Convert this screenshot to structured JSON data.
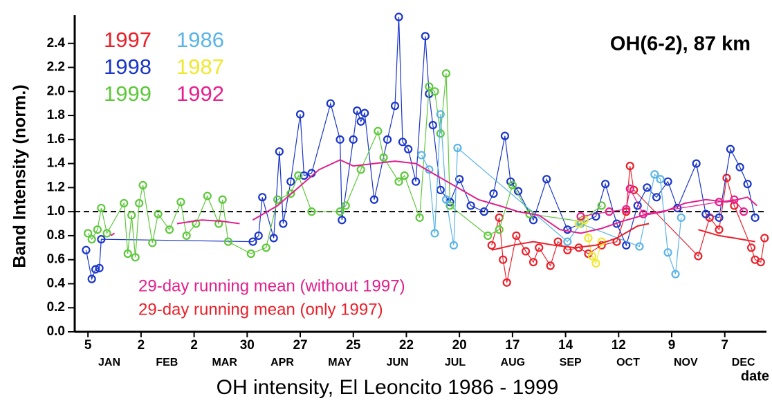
{
  "chart_data": {
    "type": "scatter",
    "title": "OH intensity, El Leoncito 1986 - 1999",
    "annotation": "OH(6-2), 87 km",
    "y_label": "Band Intensity (norm.)",
    "x_label": "date",
    "months": [
      "JAN",
      "FEB",
      "MAR",
      "APR",
      "MAY",
      "JUN",
      "JUL",
      "AUG",
      "SEP",
      "OCT",
      "NOV",
      "DEC"
    ],
    "xlim": [
      -2,
      363
    ],
    "xticks": [
      5,
      33,
      61,
      89,
      117,
      145,
      173,
      201,
      229,
      257,
      285,
      313,
      341
    ],
    "xtick_labels": [
      "5",
      "2",
      "2",
      "30",
      "27",
      "25",
      "22",
      "20",
      "17",
      "14",
      "12",
      "9",
      "7"
    ],
    "ylim": [
      0,
      2.6
    ],
    "yticks": [
      {
        "value": 0,
        "label": "0.0"
      },
      0.2,
      0.4,
      0.6,
      0.8,
      {
        "value": 1,
        "label": "1.0"
      },
      1.2,
      1.4,
      1.6,
      1.8,
      {
        "value": 2,
        "label": "2.0"
      },
      2.2,
      2.4
    ],
    "reference_line": 1,
    "series": [
      {
        "name": "1997",
        "color": "#e8202a",
        "x": [
          218,
          222,
          224,
          226,
          231,
          236,
          240,
          243,
          249,
          253,
          258,
          264,
          269,
          276,
          284,
          289,
          291,
          293,
          327,
          333,
          338,
          342,
          346,
          355,
          357,
          360,
          362
        ],
        "values": [
          0.72,
          0.95,
          0.6,
          0.41,
          0.8,
          0.67,
          0.58,
          0.7,
          0.55,
          0.75,
          0.68,
          0.7,
          0.65,
          0.72,
          0.75,
          1.0,
          1.38,
          1.18,
          0.63,
          0.95,
          0.85,
          1.28,
          1.05,
          0.7,
          0.6,
          0.58,
          0.78
        ]
      },
      {
        "name": "1998",
        "color": "#1a35c8",
        "x": [
          4,
          7,
          9,
          11,
          12,
          92,
          95,
          97,
          103,
          106,
          108,
          112,
          117,
          119,
          123,
          133,
          138,
          139,
          145,
          147,
          149,
          151,
          156,
          163,
          167,
          169,
          171,
          174,
          178,
          183,
          185,
          187,
          191,
          196,
          201,
          207,
          214,
          219,
          225,
          228,
          232,
          240,
          247,
          258,
          273,
          278,
          284,
          289,
          295,
          300,
          305,
          311,
          316,
          326,
          331,
          338,
          344,
          349,
          353,
          357
        ],
        "values": [
          0.68,
          0.44,
          0.52,
          0.53,
          0.77,
          0.75,
          0.8,
          1.12,
          0.78,
          1.5,
          0.9,
          1.25,
          1.81,
          1.3,
          1.32,
          1.9,
          1.6,
          0.93,
          1.6,
          1.84,
          1.75,
          1.82,
          1.1,
          1.6,
          1.88,
          2.62,
          1.58,
          1.52,
          1.25,
          2.46,
          1.98,
          1.72,
          1.18,
          1.08,
          1.27,
          1.05,
          1.0,
          1.15,
          1.63,
          1.25,
          1.17,
          0.93,
          1.27,
          0.85,
          0.96,
          1.23,
          0.9,
          0.72,
          1.05,
          1.2,
          1.12,
          1.25,
          1.03,
          1.4,
          0.98,
          0.95,
          1.52,
          1.37,
          1.23,
          0.95
        ]
      },
      {
        "name": "1999",
        "color": "#5dc83a",
        "x": [
          5,
          7,
          10,
          12,
          15,
          24,
          26,
          28,
          30,
          32,
          34,
          39,
          42,
          48,
          54,
          57,
          62,
          68,
          74,
          76,
          79,
          91,
          99,
          105,
          112,
          116,
          123,
          138,
          141,
          149,
          158,
          161,
          169,
          172,
          180,
          185,
          188,
          191,
          194,
          196,
          216,
          222,
          229,
          238,
          265,
          276
        ],
        "values": [
          0.82,
          0.77,
          0.85,
          1.03,
          0.82,
          1.07,
          0.65,
          0.97,
          0.62,
          1.07,
          1.22,
          0.74,
          0.98,
          0.85,
          1.08,
          0.8,
          0.9,
          1.13,
          0.9,
          1.1,
          0.75,
          0.65,
          0.7,
          1.1,
          1.15,
          1.3,
          1.0,
          1.0,
          1.05,
          1.35,
          1.67,
          1.45,
          1.25,
          1.3,
          0.95,
          2.04,
          2.0,
          1.65,
          2.15,
          1.05,
          0.8,
          0.85,
          1.22,
          0.98,
          0.92,
          1.05
        ]
      },
      {
        "name": "1986",
        "color": "#5ab4e6",
        "x": [
          181,
          185,
          188,
          191,
          194,
          198,
          200,
          258,
          265,
          296,
          304,
          307,
          311,
          315,
          318
        ],
        "values": [
          1.47,
          1.35,
          0.82,
          1.81,
          1.1,
          0.72,
          1.53,
          0.75,
          0.9,
          0.71,
          1.31,
          1.27,
          0.66,
          0.48,
          0.95
        ]
      },
      {
        "name": "1987",
        "color": "#f0e830",
        "x": [
          264,
          267,
          269,
          271,
          273,
          276
        ],
        "values": [
          0.9,
          0.93,
          0.78,
          0.63,
          0.57,
          0.75
        ]
      },
      {
        "name": "1992",
        "color": "#e8208c",
        "x": [
          265,
          280,
          289,
          291,
          298,
          338,
          346,
          351
        ],
        "values": [
          0.96,
          1.0,
          1.02,
          1.19,
          0.98,
          1.08,
          1.1,
          1.0
        ]
      }
    ],
    "running_means": [
      {
        "name": "29-day running mean (without 1997)",
        "color": "#e0208c",
        "x": [
          17,
          19,
          35,
          52,
          65,
          76,
          85,
          88,
          92,
          105,
          116,
          127,
          138,
          145,
          156,
          167,
          178,
          189,
          200,
          211,
          222,
          232,
          243,
          254,
          265,
          276,
          287,
          298,
          309,
          320,
          331,
          342,
          353,
          358
        ],
        "values": [
          0.8,
          0.82,
          null,
          0.9,
          0.93,
          0.92,
          0.9,
          null,
          0.93,
          1.05,
          1.2,
          1.35,
          1.43,
          1.38,
          1.4,
          1.42,
          1.4,
          1.3,
          1.2,
          1.1,
          1.05,
          1.0,
          0.97,
          0.85,
          0.82,
          0.86,
          0.92,
          0.97,
          1.0,
          1.07,
          1.1,
          1.08,
          1.12,
          1.05
        ]
      },
      {
        "name": "29-day running mean (only 1997)",
        "color": "#e8202a",
        "x": [
          218,
          229,
          240,
          251,
          262,
          273,
          284,
          295,
          301,
          315,
          327,
          338,
          346,
          357
        ],
        "values": [
          0.68,
          0.72,
          0.75,
          0.72,
          0.7,
          0.72,
          0.78,
          0.88,
          0.9,
          null,
          0.85,
          0.8,
          0.78,
          0.75
        ]
      }
    ]
  }
}
